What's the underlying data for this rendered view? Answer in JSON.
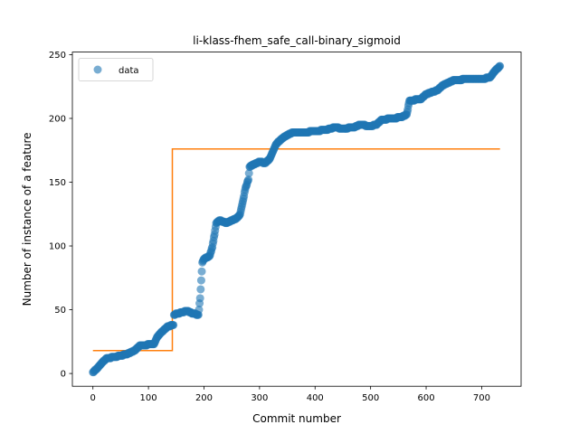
{
  "chart_data": {
    "type": "scatter",
    "title": "li-klass-fhem_safe_call-binary_sigmoid",
    "xlabel": "Commit number",
    "ylabel": "Number of instance of a feature",
    "xlim": [
      -37,
      771
    ],
    "ylim": [
      -10,
      252
    ],
    "x_ticks": [
      0,
      100,
      200,
      300,
      400,
      500,
      600,
      700
    ],
    "y_ticks": [
      0,
      50,
      100,
      150,
      200,
      250
    ],
    "grid": false,
    "legend": {
      "placement": "top-left",
      "entries": [
        "data"
      ]
    },
    "series": [
      {
        "name": "data",
        "kind": "scatter",
        "color": "#1f77b4",
        "breakpoints": [
          [
            0,
            1
          ],
          [
            5,
            3
          ],
          [
            10,
            5
          ],
          [
            15,
            8
          ],
          [
            20,
            10
          ],
          [
            25,
            12
          ],
          [
            40,
            13
          ],
          [
            60,
            15
          ],
          [
            75,
            18
          ],
          [
            85,
            22
          ],
          [
            110,
            23
          ],
          [
            115,
            28
          ],
          [
            120,
            31
          ],
          [
            130,
            35
          ],
          [
            135,
            37
          ],
          [
            145,
            38
          ],
          [
            145,
            46
          ],
          [
            160,
            48
          ],
          [
            170,
            49
          ],
          [
            180,
            47
          ],
          [
            190,
            46
          ],
          [
            193,
            59
          ],
          [
            197,
            87
          ],
          [
            200,
            90
          ],
          [
            210,
            92
          ],
          [
            215,
            99
          ],
          [
            220,
            112
          ],
          [
            222,
            118
          ],
          [
            228,
            120
          ],
          [
            240,
            118
          ],
          [
            250,
            120
          ],
          [
            260,
            122
          ],
          [
            265,
            125
          ],
          [
            270,
            135
          ],
          [
            275,
            146
          ],
          [
            280,
            152
          ],
          [
            282,
            162
          ],
          [
            290,
            164
          ],
          [
            300,
            166
          ],
          [
            310,
            165
          ],
          [
            318,
            168
          ],
          [
            325,
            175
          ],
          [
            330,
            180
          ],
          [
            340,
            184
          ],
          [
            350,
            187
          ],
          [
            360,
            189
          ],
          [
            380,
            189
          ],
          [
            400,
            190
          ],
          [
            420,
            191
          ],
          [
            435,
            193
          ],
          [
            450,
            192
          ],
          [
            470,
            193
          ],
          [
            480,
            195
          ],
          [
            500,
            194
          ],
          [
            510,
            195
          ],
          [
            520,
            199
          ],
          [
            540,
            200
          ],
          [
            555,
            201
          ],
          [
            565,
            203
          ],
          [
            570,
            214
          ],
          [
            590,
            215
          ],
          [
            600,
            219
          ],
          [
            620,
            222
          ],
          [
            630,
            226
          ],
          [
            650,
            230
          ],
          [
            680,
            231
          ],
          [
            700,
            231
          ],
          [
            715,
            232
          ],
          [
            720,
            235
          ],
          [
            728,
            239
          ],
          [
            733,
            241
          ]
        ]
      },
      {
        "name": "",
        "kind": "line",
        "color": "#ff7f0e",
        "points": [
          [
            0,
            18
          ],
          [
            143,
            18
          ],
          [
            143,
            176
          ],
          [
            733,
            176
          ]
        ]
      }
    ]
  }
}
